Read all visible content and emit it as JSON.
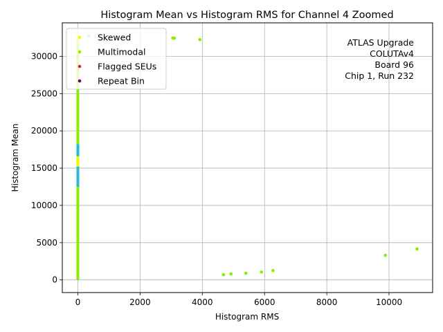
{
  "chart_data": {
    "type": "scatter",
    "title": "Histogram Mean vs Histogram RMS for Channel 4 Zoomed",
    "xlabel": "Histogram RMS",
    "ylabel": "Histogram Mean",
    "xlim": [
      -500,
      11400
    ],
    "ylim": [
      -1700,
      34500
    ],
    "xticks": [
      0,
      2000,
      4000,
      6000,
      8000,
      10000
    ],
    "yticks": [
      0,
      5000,
      10000,
      15000,
      20000,
      25000,
      30000
    ],
    "grid": true,
    "legend_position": "top-left",
    "annotation": [
      "ATLAS Upgrade",
      "COLUTAv4",
      "Board 96",
      "Chip 1, Run 232"
    ],
    "series": [
      {
        "name": "Skewed",
        "color": "#f5f500",
        "points": [
          [
            0,
            32600
          ],
          [
            0,
            31800
          ],
          [
            0,
            30600
          ]
        ]
      },
      {
        "name": "Multimodal",
        "color": "#88ee00",
        "points": [
          [
            350,
            32700
          ],
          [
            3050,
            32450
          ],
          [
            3100,
            32450
          ],
          [
            3920,
            32250
          ],
          [
            4680,
            700
          ],
          [
            4920,
            800
          ],
          [
            5400,
            900
          ],
          [
            5900,
            1050
          ],
          [
            6270,
            1250
          ],
          [
            9880,
            3300
          ],
          [
            10900,
            4150
          ]
        ]
      },
      {
        "name": "Flagged SEUs",
        "color": "#dd2222",
        "points": []
      },
      {
        "name": "Repeat Bin",
        "color": "#660077",
        "points": []
      }
    ],
    "vertical_band": {
      "x": 0,
      "segments": [
        {
          "color": "#88ee00",
          "y": [
            0,
            32300
          ]
        },
        {
          "color": "#22bbdd",
          "y": [
            12500,
            18200
          ]
        },
        {
          "color": "#f5f500",
          "y": [
            15200,
            16600
          ]
        }
      ]
    }
  }
}
